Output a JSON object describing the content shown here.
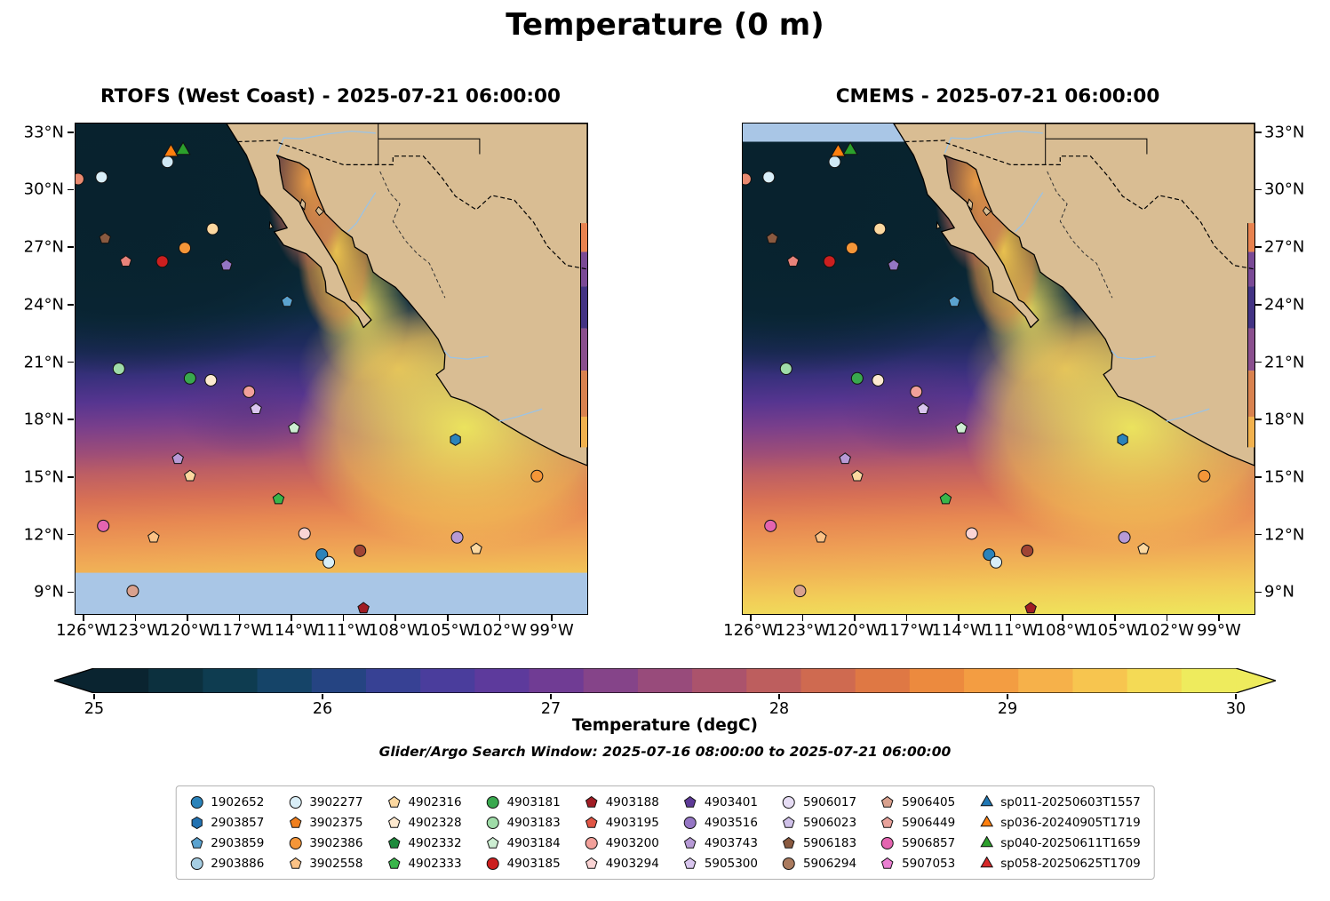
{
  "title": "Temperature (0 m)",
  "panels": [
    {
      "id": "rtofs",
      "title": "RTOFS (West Coast) - 2025-07-21 06:00:00",
      "ytick_side": "left",
      "nodata_band": "bottom"
    },
    {
      "id": "cmems",
      "title": "CMEMS - 2025-07-21 06:00:00",
      "ytick_side": "right",
      "nodata_band": "topleft"
    }
  ],
  "axes": {
    "lat": [
      {
        "v": 33,
        "label": "33°N"
      },
      {
        "v": 30,
        "label": "30°N"
      },
      {
        "v": 27,
        "label": "27°N"
      },
      {
        "v": 24,
        "label": "24°N"
      },
      {
        "v": 21,
        "label": "21°N"
      },
      {
        "v": 18,
        "label": "18°N"
      },
      {
        "v": 15,
        "label": "15°N"
      },
      {
        "v": 12,
        "label": "12°N"
      },
      {
        "v": 9,
        "label": "9°N"
      }
    ],
    "lon": [
      {
        "v": -126,
        "label": "126°W"
      },
      {
        "v": -123,
        "label": "123°W"
      },
      {
        "v": -120,
        "label": "120°W"
      },
      {
        "v": -117,
        "label": "117°W"
      },
      {
        "v": -114,
        "label": "114°W"
      },
      {
        "v": -111,
        "label": "111°W"
      },
      {
        "v": -108,
        "label": "108°W"
      },
      {
        "v": -105,
        "label": "105°W"
      },
      {
        "v": -102,
        "label": "102°W"
      },
      {
        "v": -99,
        "label": "99°W"
      }
    ]
  },
  "colorbar": {
    "label": "Temperature (degC)",
    "ticks": [
      {
        "v": 25,
        "label": "25"
      },
      {
        "v": 26,
        "label": "26"
      },
      {
        "v": 27,
        "label": "27"
      },
      {
        "v": 28,
        "label": "28"
      },
      {
        "v": 29,
        "label": "29"
      },
      {
        "v": 30,
        "label": "30"
      }
    ],
    "palette": [
      "#0a2430",
      "#0c303e",
      "#0e3c50",
      "#154468",
      "#254482",
      "#374194",
      "#4a3d9c",
      "#5d3a9c",
      "#703c94",
      "#854489",
      "#984b7b",
      "#ab536c",
      "#bd5e5e",
      "#cf6a50",
      "#df7844",
      "#ec8a3e",
      "#f39d42",
      "#f6b14a",
      "#f7c54f",
      "#f4da55",
      "#eeeb5d"
    ],
    "nodata_color": "#a9c6e6",
    "land_color": "#d9bd93"
  },
  "subtitle": "Glider/Argo Search Window: 2025-07-16 08:00:00 to 2025-07-21 06:00:00",
  "legend": {
    "entries": [
      {
        "label": "1902652",
        "shape": "circle",
        "color": "#2b83ba"
      },
      {
        "label": "2903857",
        "shape": "hexagon",
        "color": "#2272b2"
      },
      {
        "label": "2903859",
        "shape": "pentagon",
        "color": "#5ba3d0"
      },
      {
        "label": "2903886",
        "shape": "circle",
        "color": "#a6cee3"
      },
      {
        "label": "3902277",
        "shape": "circle",
        "color": "#d9eef7"
      },
      {
        "label": "3902375",
        "shape": "pentagon",
        "color": "#f07f1e"
      },
      {
        "label": "3902386",
        "shape": "circle",
        "color": "#f59638"
      },
      {
        "label": "3902558",
        "shape": "pentagon",
        "color": "#fbc286"
      },
      {
        "label": "4902316",
        "shape": "pentagon",
        "color": "#fcd8a0"
      },
      {
        "label": "4902328",
        "shape": "pentagon",
        "color": "#fde9cf"
      },
      {
        "label": "4902332",
        "shape": "pentagon",
        "color": "#1e8a3c"
      },
      {
        "label": "4902333",
        "shape": "pentagon",
        "color": "#39b54a"
      },
      {
        "label": "4903181",
        "shape": "circle",
        "color": "#39a84e"
      },
      {
        "label": "4903183",
        "shape": "circle",
        "color": "#9fdca8"
      },
      {
        "label": "4903184",
        "shape": "pentagon",
        "color": "#cdeed2"
      },
      {
        "label": "4903185",
        "shape": "circle",
        "color": "#cc1f1f"
      },
      {
        "label": "4903188",
        "shape": "pentagon",
        "color": "#a01c24"
      },
      {
        "label": "4903195",
        "shape": "pentagon",
        "color": "#e05545"
      },
      {
        "label": "4903200",
        "shape": "circle",
        "color": "#f2a09a"
      },
      {
        "label": "4903294",
        "shape": "pentagon",
        "color": "#fad4d4"
      },
      {
        "label": "4903401",
        "shape": "pentagon",
        "color": "#5e3a97"
      },
      {
        "label": "4903516",
        "shape": "circle",
        "color": "#9576c4"
      },
      {
        "label": "4903743",
        "shape": "pentagon",
        "color": "#b79ad6"
      },
      {
        "label": "5905300",
        "shape": "pentagon",
        "color": "#d9c6ee"
      },
      {
        "label": "5906017",
        "shape": "circle",
        "color": "#e6dcf4"
      },
      {
        "label": "5906023",
        "shape": "pentagon",
        "color": "#cfc0e8"
      },
      {
        "label": "5906183",
        "shape": "pentagon",
        "color": "#8a5a40"
      },
      {
        "label": "5906294",
        "shape": "circle",
        "color": "#aa7a5e"
      },
      {
        "label": "5906405",
        "shape": "pentagon",
        "color": "#d9a18e"
      },
      {
        "label": "5906449",
        "shape": "pentagon",
        "color": "#e8a29b"
      },
      {
        "label": "5906857",
        "shape": "circle",
        "color": "#e464b0"
      },
      {
        "label": "5907053",
        "shape": "pentagon",
        "color": "#ea7fd2"
      },
      {
        "label": "sp011-20250603T1557",
        "shape": "triangle",
        "color": "#1f77b4"
      },
      {
        "label": "sp036-20240905T1719",
        "shape": "triangle",
        "color": "#ff7f0e"
      },
      {
        "label": "sp040-20250611T1659",
        "shape": "triangle",
        "color": "#2ca02c"
      },
      {
        "label": "sp058-20250625T1709",
        "shape": "triangle",
        "color": "#d62728"
      }
    ]
  },
  "chart_data": {
    "type": "heatmap",
    "variable": "Temperature (0 m)",
    "units": "degC",
    "valid_time": "2025-07-21 06:00:00",
    "panels": [
      "RTOFS (West Coast) - 2025-07-21 06:00:00",
      "CMEMS - 2025-07-21 06:00:00"
    ],
    "lon_ticks_deg_w": [
      126,
      123,
      120,
      117,
      114,
      111,
      108,
      105,
      102,
      99
    ],
    "lat_ticks_deg_n": [
      9,
      12,
      15,
      18,
      21,
      24,
      27,
      30,
      33
    ],
    "colorbar": {
      "label": "Temperature (degC)",
      "min": 25,
      "max": 30,
      "ticks": [
        25,
        26,
        27,
        28,
        29,
        30
      ],
      "extend": "both"
    },
    "search_window": "2025-07-16 08:00:00 to 2025-07-21 06:00:00",
    "platforms": [
      "1902652",
      "2903857",
      "2903859",
      "2903886",
      "3902277",
      "3902375",
      "3902386",
      "3902558",
      "4902316",
      "4902328",
      "4902332",
      "4902333",
      "4903181",
      "4903183",
      "4903184",
      "4903185",
      "4903188",
      "4903195",
      "4903200",
      "4903294",
      "4903401",
      "4903516",
      "4903743",
      "5905300",
      "5906017",
      "5906023",
      "5906183",
      "5906294",
      "5906405",
      "5906449",
      "5906857",
      "5907053",
      "sp011-20250603T1557",
      "sp036-20240905T1719",
      "sp040-20250611T1659",
      "sp058-20250625T1709"
    ],
    "observations": [
      {
        "lon": -126.35,
        "lat": 30.6,
        "shape": "circle",
        "color": "#e98a70"
      },
      {
        "lon": -125.0,
        "lat": 30.7,
        "shape": "circle",
        "color": "#d8eef8"
      },
      {
        "lon": -121.2,
        "lat": 31.5,
        "shape": "circle",
        "color": "#cfe8f4"
      },
      {
        "lon": -121.0,
        "lat": 32.0,
        "shape": "triangle",
        "color": "#ff7f0e"
      },
      {
        "lon": -120.3,
        "lat": 32.1,
        "shape": "triangle",
        "color": "#2ca02c"
      },
      {
        "lon": -118.6,
        "lat": 28.0,
        "shape": "circle",
        "color": "#fcd8a0"
      },
      {
        "lon": -124.8,
        "lat": 27.5,
        "shape": "pentagon",
        "color": "#8a5a40"
      },
      {
        "lon": -123.6,
        "lat": 26.3,
        "shape": "pentagon",
        "color": "#e8837a"
      },
      {
        "lon": -121.5,
        "lat": 26.3,
        "shape": "circle",
        "color": "#cc1f1f"
      },
      {
        "lon": -120.2,
        "lat": 27.0,
        "shape": "circle",
        "color": "#f59638"
      },
      {
        "lon": -117.8,
        "lat": 26.1,
        "shape": "pentagon",
        "color": "#9576c4"
      },
      {
        "lon": -114.3,
        "lat": 24.2,
        "shape": "pentagon",
        "color": "#5ba3d0"
      },
      {
        "lon": -124.0,
        "lat": 20.7,
        "shape": "circle",
        "color": "#9fdca8"
      },
      {
        "lon": -119.9,
        "lat": 20.2,
        "shape": "circle",
        "color": "#39a84e"
      },
      {
        "lon": -118.7,
        "lat": 20.1,
        "shape": "circle",
        "color": "#fde9cf"
      },
      {
        "lon": -116.5,
        "lat": 19.5,
        "shape": "circle",
        "color": "#f2a09a"
      },
      {
        "lon": -116.1,
        "lat": 18.6,
        "shape": "pentagon",
        "color": "#d9c6ee"
      },
      {
        "lon": -113.9,
        "lat": 17.6,
        "shape": "pentagon",
        "color": "#cdeed2"
      },
      {
        "lon": -104.6,
        "lat": 17.0,
        "shape": "hexagon",
        "color": "#2b83ba"
      },
      {
        "lon": -120.6,
        "lat": 16.0,
        "shape": "pentagon",
        "color": "#b79ad6"
      },
      {
        "lon": -119.9,
        "lat": 15.1,
        "shape": "pentagon",
        "color": "#fcd8a0"
      },
      {
        "lon": -99.9,
        "lat": 15.1,
        "shape": "circle",
        "color": "#f59638"
      },
      {
        "lon": -114.8,
        "lat": 13.9,
        "shape": "pentagon",
        "color": "#39b54a"
      },
      {
        "lon": -124.9,
        "lat": 12.5,
        "shape": "circle",
        "color": "#e464b0"
      },
      {
        "lon": -122.0,
        "lat": 11.9,
        "shape": "pentagon",
        "color": "#fbc286"
      },
      {
        "lon": -113.3,
        "lat": 12.1,
        "shape": "circle",
        "color": "#fad4d4"
      },
      {
        "lon": -110.1,
        "lat": 11.2,
        "shape": "circle",
        "color": "#a04434"
      },
      {
        "lon": -104.5,
        "lat": 11.9,
        "shape": "circle",
        "color": "#b79ad6"
      },
      {
        "lon": -103.4,
        "lat": 11.3,
        "shape": "pentagon",
        "color": "#fcd8a0"
      },
      {
        "lon": -112.3,
        "lat": 11.0,
        "shape": "circle",
        "color": "#2b83ba"
      },
      {
        "lon": -111.9,
        "lat": 10.6,
        "shape": "circle",
        "color": "#d8eef8"
      },
      {
        "lon": -123.2,
        "lat": 9.1,
        "shape": "circle",
        "color": "#d9a18e"
      },
      {
        "lon": -109.9,
        "lat": 8.2,
        "shape": "pentagon",
        "color": "#a01c24"
      }
    ]
  }
}
